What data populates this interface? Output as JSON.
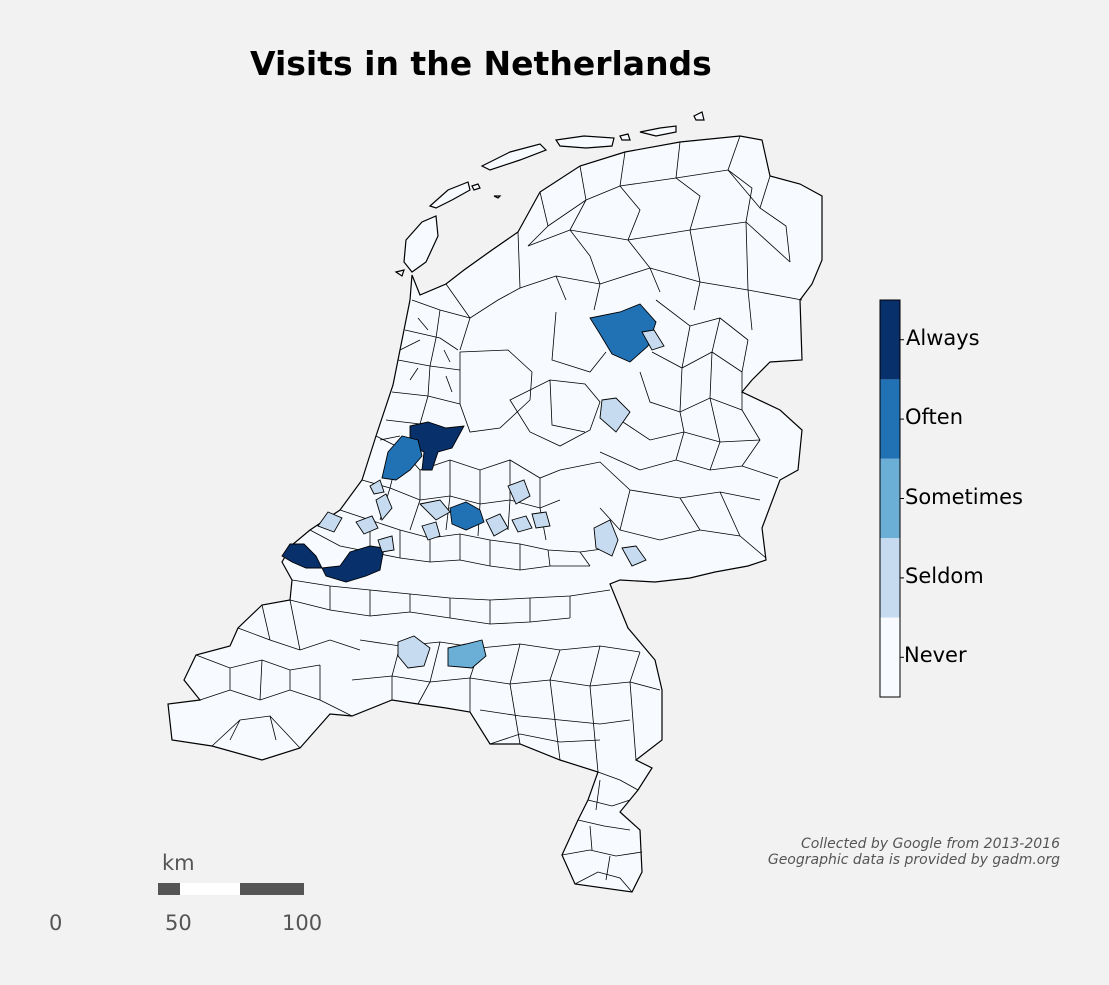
{
  "title": "Visits in the Netherlands",
  "legend": {
    "categories": [
      "Always",
      "Often",
      "Sometimes",
      "Seldom",
      "Never"
    ],
    "colors": {
      "Always": "#08306b",
      "Often": "#2171b5",
      "Sometimes": "#6baed6",
      "Seldom": "#c6dbef",
      "Never": "#f7fbff"
    }
  },
  "credits": {
    "line1": "Collected by Google from 2013-2016",
    "line2": "Geographic data is provided by gadm.org"
  },
  "scalebar": {
    "unit": "km",
    "ticks": [
      "0",
      "50",
      "100"
    ]
  }
}
